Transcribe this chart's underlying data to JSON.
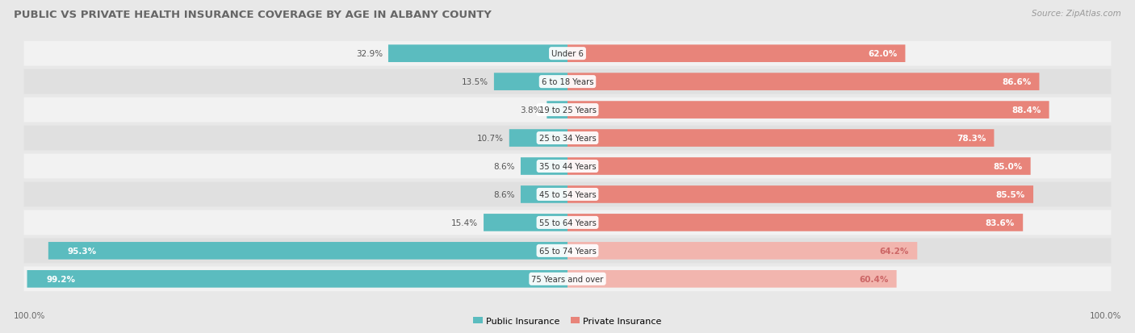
{
  "title": "PUBLIC VS PRIVATE HEALTH INSURANCE COVERAGE BY AGE IN ALBANY COUNTY",
  "source": "Source: ZipAtlas.com",
  "categories": [
    "Under 6",
    "6 to 18 Years",
    "19 to 25 Years",
    "25 to 34 Years",
    "35 to 44 Years",
    "45 to 54 Years",
    "55 to 64 Years",
    "65 to 74 Years",
    "75 Years and over"
  ],
  "public_values": [
    32.9,
    13.5,
    3.8,
    10.7,
    8.6,
    8.6,
    15.4,
    95.3,
    99.2
  ],
  "private_values": [
    62.0,
    86.6,
    88.4,
    78.3,
    85.0,
    85.5,
    83.6,
    64.2,
    60.4
  ],
  "public_color": "#5bbcbf",
  "private_color": "#e8847a",
  "private_color_light": "#f2b5ae",
  "public_label": "Public Insurance",
  "private_label": "Private Insurance",
  "bg_color": "#e8e8e8",
  "row_bg_light": "#f2f2f2",
  "row_bg_dark": "#e0e0e0",
  "title_color": "#666666",
  "source_color": "#999999",
  "xlim_left": -100,
  "xlim_right": 100,
  "axis_label_left": "100.0%",
  "axis_label_right": "100.0%"
}
